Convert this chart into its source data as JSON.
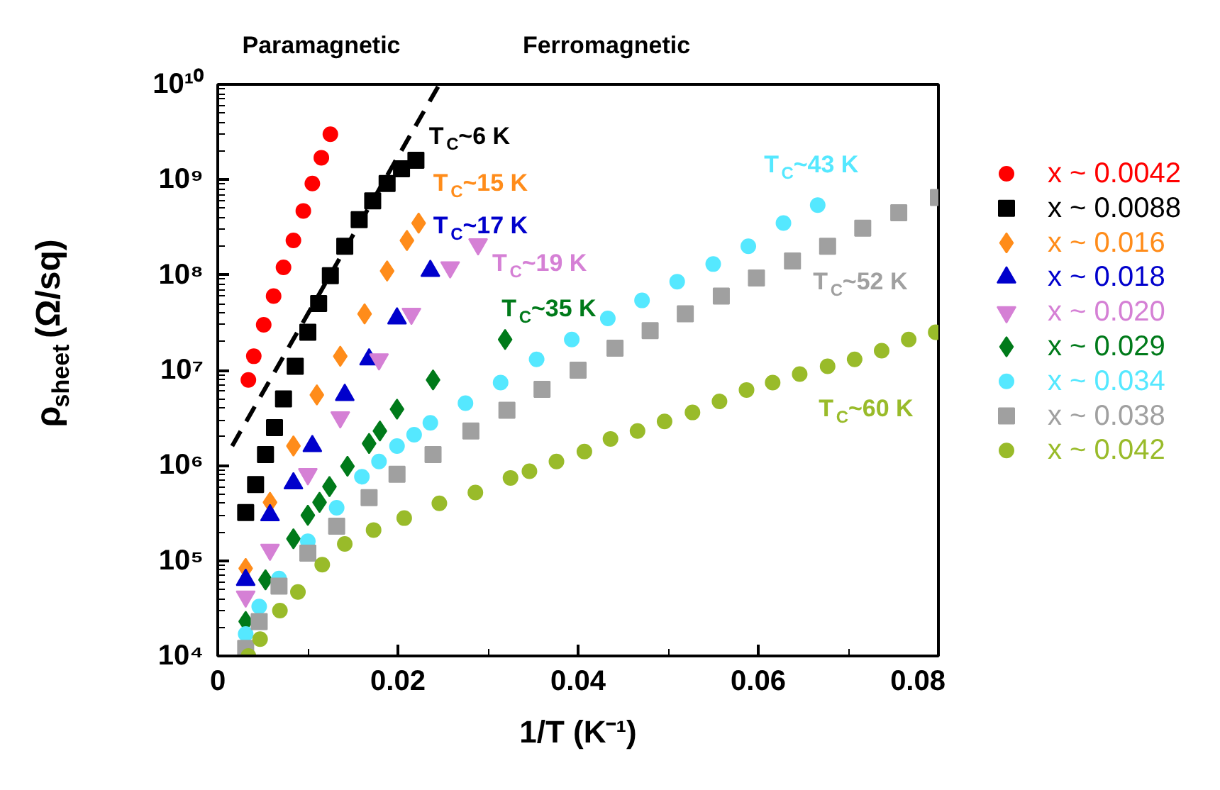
{
  "chart_data": {
    "type": "scatter",
    "xlabel": "1/T (K⁻¹)",
    "ylabel": "ρ$_{sheet}$(Ω/sq)",
    "xlim": [
      0,
      0.08
    ],
    "ylim": [
      10000,
      10000000000
    ],
    "log": "y",
    "grid": false,
    "legend": "right",
    "xticks": [
      0,
      {
        "value": 0.01,
        "label": null
      },
      0.02,
      {
        "value": 0.03,
        "label": null
      },
      0.04,
      {
        "value": 0.05,
        "label": null
      },
      0.06,
      {
        "value": 0.07,
        "label": null
      },
      0.08
    ],
    "yticks": [
      {
        "value": 10000,
        "label": "10⁴"
      },
      {
        "value": 100000,
        "label": "10⁵"
      },
      {
        "value": 1000000,
        "label": "10⁶"
      },
      {
        "value": 10000000,
        "label": "10⁷"
      },
      {
        "value": 100000000,
        "label": "10⁸"
      },
      {
        "value": 1000000000,
        "label": "10⁹"
      },
      {
        "value": 10000000000,
        "label": "10¹⁰"
      }
    ],
    "series": [
      {
        "name": "x ~ 0.0042",
        "color": "#ff0000",
        "marker": "circle",
        "x": [
          0.0034,
          0.004,
          0.0051,
          0.0062,
          0.0073,
          0.0084,
          0.0095,
          0.0105,
          0.0115,
          0.0125
        ],
        "values": [
          7900000.0,
          14000000.0,
          30000000.0,
          60000000.0,
          120000000.0,
          230000000.0,
          470000000.0,
          910000000.0,
          1700000000.0,
          3000000000.0
        ]
      },
      {
        "name": "x ~ 0.0088",
        "color": "#000000",
        "marker": "square",
        "x": [
          0.0031,
          0.0042,
          0.0053,
          0.0063,
          0.0073,
          0.0086,
          0.01,
          0.0112,
          0.0125,
          0.0141,
          0.0157,
          0.0172,
          0.0188,
          0.0204,
          0.022
        ],
        "values": [
          320000.0,
          630000.0,
          1300000.0,
          2500000.0,
          5000000.0,
          11000000.0,
          25000000.0,
          50000000.0,
          98000000.0,
          200000000.0,
          380000000.0,
          600000000.0,
          910000000.0,
          1300000000.0,
          1600000000.0
        ]
      },
      {
        "name": "x ~ 0.016",
        "color": "#ff8c1a",
        "marker": "diamond",
        "x": [
          0.0031,
          0.0058,
          0.0084,
          0.011,
          0.0136,
          0.0163,
          0.0188,
          0.021,
          0.0223
        ],
        "values": [
          83000.0,
          410000.0,
          1600000.0,
          5500000.0,
          14000000.0,
          39000000.0,
          110000000.0,
          230000000.0,
          350000000.0
        ]
      },
      {
        "name": "x ~ 0.018",
        "color": "#0000cc",
        "marker": "triangle",
        "x": [
          0.0031,
          0.0058,
          0.0084,
          0.0105,
          0.0141,
          0.0168,
          0.0199,
          0.0236
        ],
        "values": [
          63000.0,
          300000.0,
          650000.0,
          1600000.0,
          5500000.0,
          13000000.0,
          35000000.0,
          110000000.0
        ]
      },
      {
        "name": "x ~ 0.020",
        "color": "#d580d5",
        "x": [
          0.0031,
          0.0058,
          0.01,
          0.0136,
          0.0179,
          0.0215,
          0.0258,
          0.0289
        ],
        "values": [
          42000.0,
          130000.0,
          810000.0,
          3200000.0,
          13000000.0,
          39000000.0,
          120000000.0,
          210000000.0
        ]
      },
      {
        "name": "x ~ 0.029",
        "color": "#007a1a",
        "marker": "diamond",
        "x": [
          0.0031,
          0.0053,
          0.0084,
          0.01,
          0.0113,
          0.0124,
          0.0144,
          0.0168,
          0.018,
          0.0199,
          0.0239,
          0.0319
        ],
        "values": [
          23000.0,
          63000.0,
          170000.0,
          300000.0,
          410000.0,
          600000.0,
          980000.0,
          1700000.0,
          2300000.0,
          3900000.0,
          7900000.0,
          21000000.0
        ]
      },
      {
        "name": "x ~ 0.034",
        "color": "#55e8ff",
        "marker": "circle",
        "x": [
          0.0031,
          0.0046,
          0.0068,
          0.01,
          0.0132,
          0.016,
          0.0179,
          0.0199,
          0.0218,
          0.0236,
          0.0275,
          0.0314,
          0.0354,
          0.0393,
          0.0433,
          0.0471,
          0.051,
          0.055,
          0.0589,
          0.0628,
          0.0666
        ],
        "values": [
          17000.0,
          33000.0,
          65000.0,
          160000.0,
          360000.0,
          760000.0,
          1100000.0,
          1600000.0,
          2100000.0,
          2800000.0,
          4500000.0,
          7400000.0,
          13000000.0,
          21000000.0,
          35000000.0,
          54000000.0,
          85000000.0,
          130000000.0,
          200000000.0,
          350000000.0,
          540000000.0
        ]
      },
      {
        "name": "x ~ 0.038",
        "color": "#a0a0a0",
        "marker": "square",
        "x": [
          0.0031,
          0.0046,
          0.0068,
          0.01,
          0.0132,
          0.0168,
          0.0199,
          0.0239,
          0.0281,
          0.0321,
          0.036,
          0.04,
          0.0441,
          0.048,
          0.0519,
          0.0559,
          0.0598,
          0.0638,
          0.0677,
          0.0716,
          0.0756,
          0.08
        ],
        "values": [
          12000.0,
          23000.0,
          54000.0,
          120000.0,
          230000.0,
          460000.0,
          810000.0,
          1300000.0,
          2300000.0,
          3800000.0,
          6300000.0,
          10000000.0,
          17000000.0,
          26000000.0,
          39000000.0,
          60000000.0,
          93000000.0,
          140000000.0,
          200000000.0,
          310000000.0,
          450000000.0,
          650000000.0
        ]
      },
      {
        "name": "x ~ 0.042",
        "color": "#99bb2a",
        "marker": "circle",
        "x": [
          0.0034,
          0.0047,
          0.0069,
          0.0089,
          0.0116,
          0.0141,
          0.0173,
          0.0207,
          0.0246,
          0.0286,
          0.0325,
          0.0346,
          0.0376,
          0.0407,
          0.0436,
          0.0466,
          0.0496,
          0.0527,
          0.0557,
          0.0587,
          0.0616,
          0.0646,
          0.0677,
          0.0707,
          0.0737,
          0.0767,
          0.0797
        ],
        "values": [
          10000.0,
          15000.0,
          30000.0,
          47000.0,
          91000.0,
          150000.0,
          210000.0,
          280000.0,
          400000.0,
          520000.0,
          740000.0,
          870000.0,
          1100000.0,
          1400000.0,
          1900000.0,
          2300000.0,
          2900000.0,
          3600000.0,
          4700000.0,
          6200000.0,
          7400000.0,
          9100000.0,
          11000000.0,
          13000000.0,
          16000000.0,
          21000000.0,
          25000000.0
        ]
      },
      {
        "type": "line",
        "color": "#000000",
        "line_style": "dashed",
        "x": [
          0.0016,
          0.0246
        ],
        "values": [
          1600000.0,
          10000000000.0
        ]
      }
    ],
    "annotations": [
      "Paramagnetic",
      "Ferromagnetic",
      "T$_{C}$~6 K",
      "T$_{C}$~15 K",
      "T$_{C}$~17 K",
      "T$_{C}$~19 K",
      "T$_{C}$~35 K",
      "T$_{C}$~43 K",
      "T$_{C}$~52 K",
      "T$_{C}$~60 K"
    ]
  }
}
